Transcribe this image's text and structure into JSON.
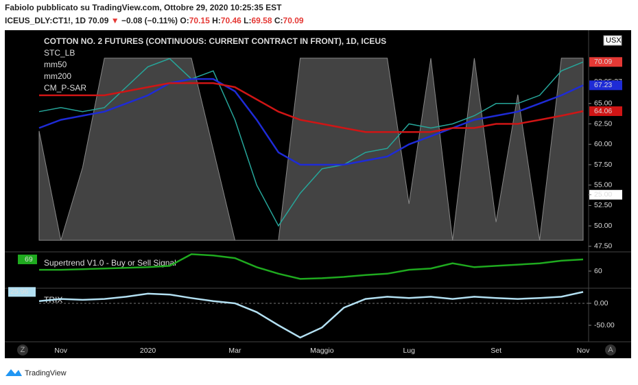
{
  "header": {
    "line1": "Fabiolo pubblicato su TradingView.com, Ottobre 29, 2020 10:25:35 EST",
    "symbol": "ICEUS_DLY:CT1!, 1D",
    "last": "70.09",
    "arrow": "▼",
    "change": "−0.08 (−0.11%)",
    "o_label": "O:",
    "o": "70.15",
    "h_label": "H:",
    "h": "70.46",
    "l_label": "L:",
    "l": "69.58",
    "c_label": "C:",
    "c": "70.09"
  },
  "footer": {
    "brand": "TradingView",
    "left_button": "Z",
    "right_button": "A"
  },
  "chart_data": [
    {
      "type": "line",
      "title": "COTTON NO. 2 FUTURES (CONTINUOUS: CURRENT CONTRACT IN FRONT), 1D, ICEUS",
      "legend_extra": "CM_P-SAR",
      "currency": "USX",
      "countdown": "03:05:37",
      "categories": [
        null,
        "Nov",
        null,
        null,
        null,
        "2020",
        null,
        null,
        null,
        "Mar",
        null,
        null,
        null,
        "Maggio",
        null,
        null,
        null,
        "Lug",
        null,
        null,
        null,
        "Set",
        null,
        null,
        null,
        "Nov"
      ],
      "ylim": [
        46.9,
        73.9
      ],
      "yticks": [
        {
          "value": 47.5,
          "label": "47.50"
        },
        {
          "value": 50,
          "label": "50.00"
        },
        {
          "value": 52.5,
          "label": "52.50"
        },
        {
          "value": 55,
          "label": "55.00"
        },
        {
          "value": 57.5,
          "label": "57.50"
        },
        {
          "value": 60,
          "label": "60.00"
        },
        {
          "value": 62.5,
          "label": "62.50"
        },
        {
          "value": 65,
          "label": "65.00"
        }
      ],
      "y2lim": [
        -6,
        115
      ],
      "y2ticks": [
        {
          "value": 25,
          "label": "25.00"
        }
      ],
      "series": [
        {
          "name": "STC_LB",
          "color": "#5a5a5a",
          "axis": "y2",
          "values": [
            60,
            0,
            40,
            100,
            100,
            100,
            100,
            100,
            50,
            0,
            0,
            0,
            100,
            100,
            100,
            100,
            100,
            20,
            100,
            0,
            100,
            10,
            80,
            0,
            100,
            100
          ]
        },
        {
          "color": "#26a69a",
          "values": [
            64,
            64.5,
            64,
            64.5,
            67,
            69.5,
            70.5,
            68,
            69,
            63,
            55,
            50,
            54,
            57,
            57.5,
            59,
            59.5,
            62.5,
            62,
            62.5,
            63.5,
            65,
            65,
            66,
            69,
            70.09
          ]
        },
        {
          "name": "mm50",
          "color": "#1e2bd6",
          "values": [
            62,
            63,
            63.5,
            64,
            65,
            66,
            67.5,
            68,
            68,
            66.5,
            63,
            59,
            57.5,
            57.5,
            57.5,
            58,
            58.5,
            60,
            61,
            62,
            63,
            63.5,
            64,
            65,
            66,
            67.23
          ]
        },
        {
          "name": "mm200",
          "color": "#d01515",
          "values": [
            66,
            66,
            66,
            66,
            66.5,
            67,
            67.5,
            67.5,
            67.5,
            67,
            65.5,
            64,
            63,
            62.5,
            62,
            61.5,
            61.5,
            61.5,
            61.5,
            62,
            62,
            62.5,
            62.5,
            63,
            63.5,
            64.06
          ]
        }
      ]
    },
    {
      "type": "line",
      "ylim": [
        46.8,
        74.8
      ],
      "yticks": [
        60
      ],
      "series": [
        {
          "name": "Supertrend V1.0 - Buy or Sell Signal",
          "color": "#1faa1f",
          "values": [
            61,
            61,
            61.5,
            62,
            62.5,
            63,
            64,
            73,
            72,
            70,
            63,
            58,
            54,
            54.5,
            55.5,
            57,
            58,
            61,
            62,
            66,
            63,
            64,
            65,
            66,
            68,
            69
          ]
        }
      ]
    },
    {
      "type": "line",
      "ylim": [
        -86,
        32.8
      ],
      "yticks": [
        {
          "value": 0,
          "label": "0.00"
        },
        {
          "value": -50,
          "label": "-50.00"
        }
      ],
      "series": [
        {
          "name": "TRIX",
          "color": "#b3e0f2",
          "values": [
            5,
            10,
            8,
            10,
            15,
            22,
            20,
            12,
            5,
            0,
            -20,
            -50,
            -78,
            -55,
            -10,
            10,
            15,
            12,
            15,
            10,
            15,
            12,
            10,
            12,
            15,
            25.96
          ]
        }
      ]
    }
  ]
}
